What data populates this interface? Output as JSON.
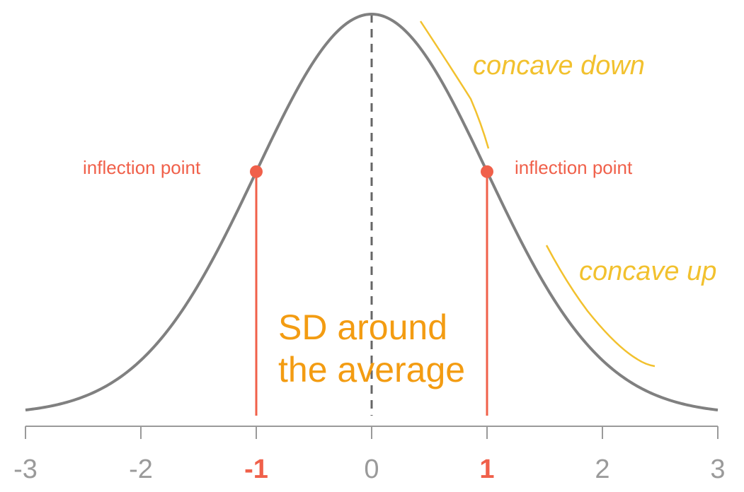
{
  "figure": {
    "x_ticks": [
      {
        "value": -3,
        "label": "-3",
        "highlight": false
      },
      {
        "value": -2,
        "label": "-2",
        "highlight": false
      },
      {
        "value": -1,
        "label": "-1",
        "highlight": true
      },
      {
        "value": 0,
        "label": "0",
        "highlight": false
      },
      {
        "value": 1,
        "label": "1",
        "highlight": true
      },
      {
        "value": 2,
        "label": "2",
        "highlight": false
      },
      {
        "value": 3,
        "label": "3",
        "highlight": false
      }
    ],
    "x_range": [
      -3,
      3
    ],
    "curve": "standard normal density",
    "mean": 0,
    "sd": 1,
    "inflection_points": [
      -1,
      1
    ],
    "annotations": {
      "inflection_left": "inflection point",
      "inflection_right": "inflection point",
      "concave_down": "concave down",
      "concave_up": "concave up",
      "sd_line1": "SD around",
      "sd_line2": "the average"
    },
    "colors": {
      "curve": "#808080",
      "axis": "#9a9a9a",
      "inflection": "#f0604a",
      "concave": "#f2c12e",
      "sd_text": "#f39c12"
    }
  }
}
